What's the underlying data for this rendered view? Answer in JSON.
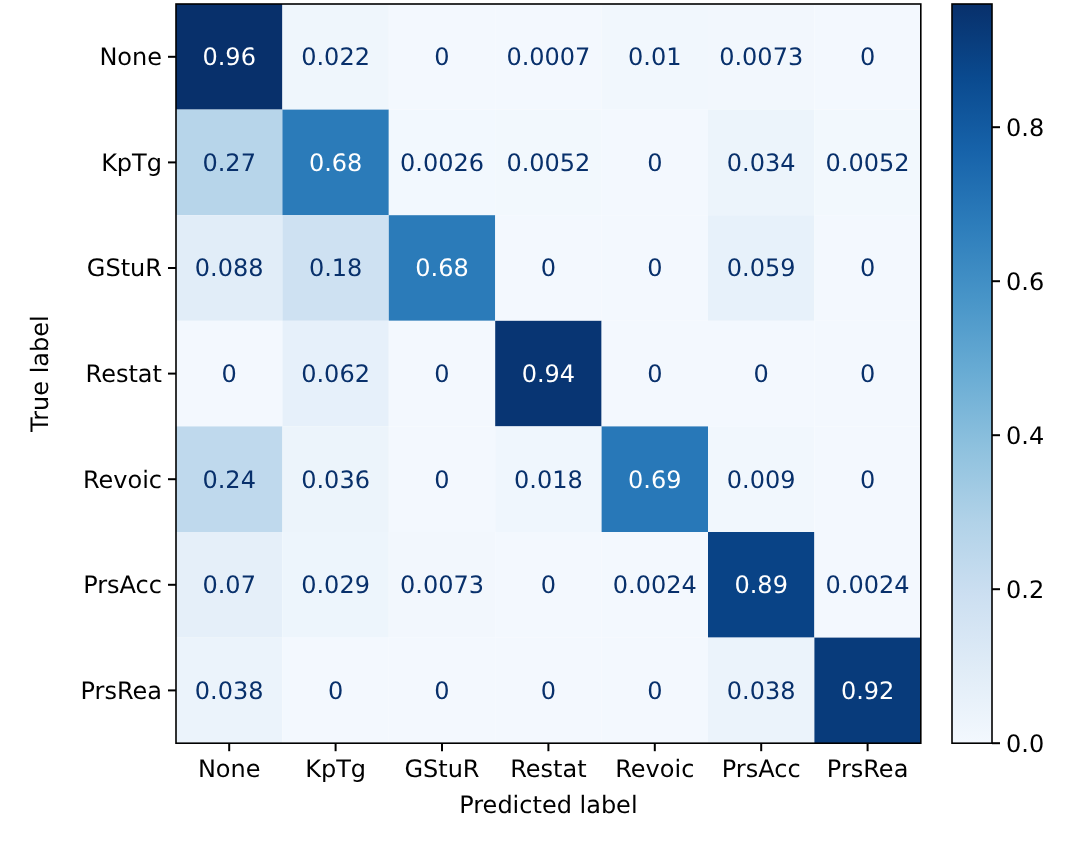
{
  "chart_data": {
    "type": "heatmap",
    "xlabel": "Predicted label",
    "ylabel": "True label",
    "categories": [
      "None",
      "KpTg",
      "GStuR",
      "Restat",
      "Revoic",
      "PrsAcc",
      "PrsRea"
    ],
    "y_categories": [
      "None",
      "KpTg",
      "GStuR",
      "Restat",
      "Revoic",
      "PrsAcc",
      "PrsRea"
    ],
    "cells": [
      [
        0.96,
        0.022,
        0,
        0.0007,
        0.01,
        0.0073,
        0
      ],
      [
        0.27,
        0.68,
        0.0026,
        0.0052,
        0,
        0.034,
        0.0052
      ],
      [
        0.088,
        0.18,
        0.68,
        0,
        0,
        0.059,
        0
      ],
      [
        0,
        0.062,
        0,
        0.94,
        0,
        0,
        0
      ],
      [
        0.24,
        0.036,
        0,
        0.018,
        0.69,
        0.009,
        0
      ],
      [
        0.07,
        0.029,
        0.0073,
        0,
        0.0024,
        0.89,
        0.0024
      ],
      [
        0.038,
        0,
        0,
        0,
        0,
        0.038,
        0.92
      ]
    ],
    "data_labels": true,
    "clim": [
      0,
      0.96
    ],
    "cticks": [
      {
        "value": 0,
        "label": "0.0"
      },
      {
        "value": 0.2,
        "label": "0.2"
      },
      {
        "value": 0.4,
        "label": "0.4"
      },
      {
        "value": 0.6,
        "label": "0.6"
      },
      {
        "value": 0.8,
        "label": "0.8"
      }
    ]
  }
}
